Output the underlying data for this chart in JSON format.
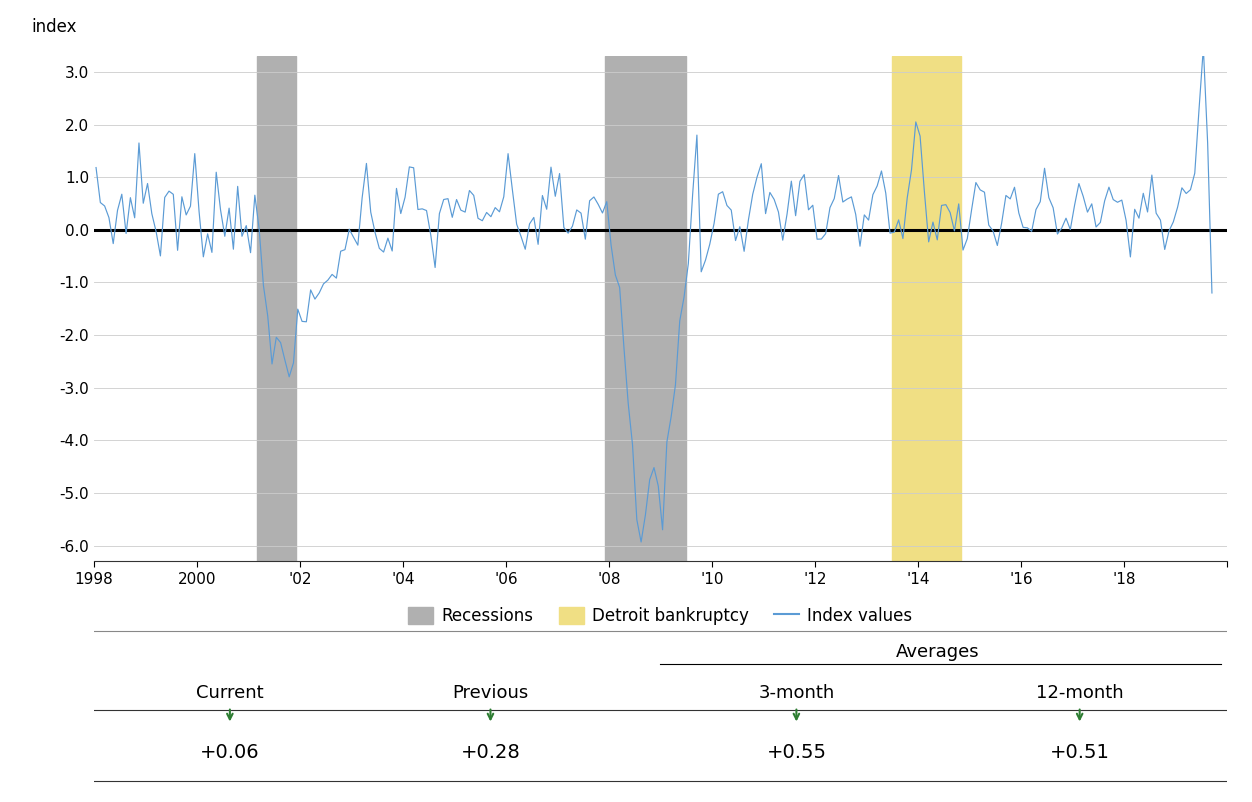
{
  "ylabel": "index",
  "xlim": [
    1998.0,
    2019.92
  ],
  "ylim": [
    -6.3,
    3.3
  ],
  "yticks": [
    3.0,
    2.0,
    1.0,
    0.0,
    -1.0,
    -2.0,
    -3.0,
    -4.0,
    -5.0,
    -6.0
  ],
  "ytick_labels": [
    "3.0",
    "2.0",
    "1.0",
    "0.0",
    "-1.0",
    "-2.0",
    "-3.0",
    "-4.0",
    "-5.0",
    "-6.0"
  ],
  "xtick_positions": [
    1998,
    2000,
    2002,
    2004,
    2006,
    2008,
    2010,
    2012,
    2014,
    2016,
    2018,
    2020
  ],
  "xtick_labels": [
    "1998",
    "2000",
    "'02",
    "'04",
    "'06",
    "'08",
    "'10",
    "'12",
    "'14",
    "'16",
    "'18",
    ""
  ],
  "recession1_start": 2001.17,
  "recession1_end": 2001.92,
  "recession2_start": 2007.92,
  "recession2_end": 2009.5,
  "bankruptcy_start": 2013.5,
  "bankruptcy_end": 2014.83,
  "recession_color": "#b0b0b0",
  "bankruptcy_color": "#f0df84",
  "line_color": "#5b9bd5",
  "zero_line_color": "#000000",
  "bg_color": "#ffffff",
  "legend_items": [
    "Recessions",
    "Detroit bankruptcy",
    "Index values"
  ],
  "averages_label": "Averages",
  "col_labels": [
    "Current",
    "Previous",
    "3-month",
    "12-month"
  ],
  "table_values": [
    "+0.06",
    "+0.28",
    "+0.55",
    "+0.51"
  ],
  "green_marker_color": "#2d7d32"
}
